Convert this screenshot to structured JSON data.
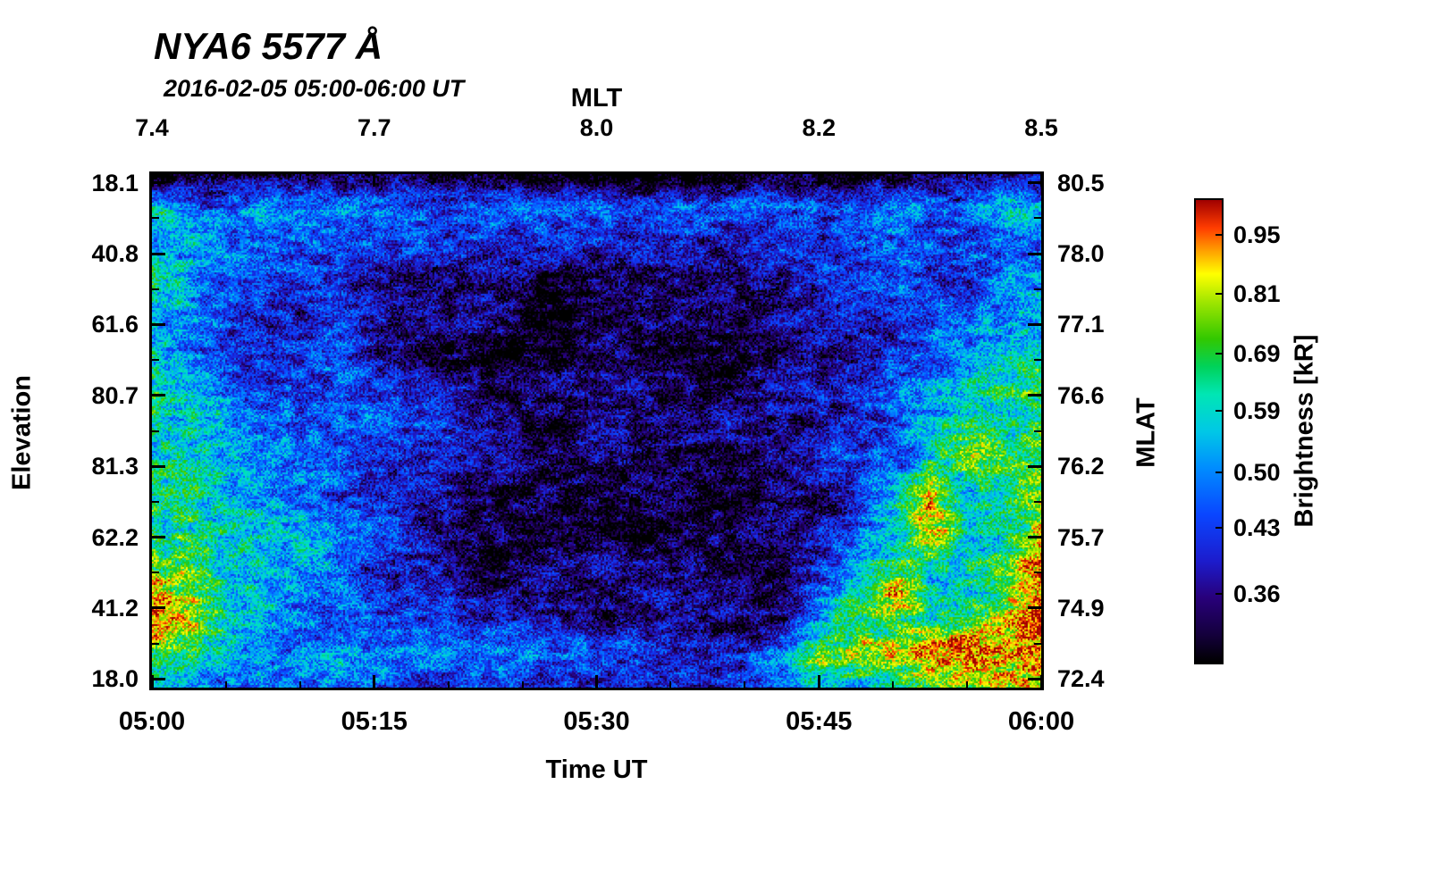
{
  "title": "NYA6 5577 Å",
  "subtitle": "2016-02-05 05:00-06:00 UT",
  "axes": {
    "top": {
      "label": "MLT",
      "ticks": [
        {
          "f": 0.0,
          "label": "7.4"
        },
        {
          "f": 0.25,
          "label": "7.7"
        },
        {
          "f": 0.5,
          "label": "8.0"
        },
        {
          "f": 0.75,
          "label": "8.2"
        },
        {
          "f": 1.0,
          "label": "8.5"
        }
      ]
    },
    "bottom": {
      "label": "Time UT",
      "ticks": [
        {
          "f": 0.0,
          "label": "05:00"
        },
        {
          "f": 0.25,
          "label": "05:15"
        },
        {
          "f": 0.5,
          "label": "05:30"
        },
        {
          "f": 0.75,
          "label": "05:45"
        },
        {
          "f": 1.0,
          "label": "06:00"
        }
      ]
    },
    "left": {
      "label": "Elevation",
      "ticks": [
        {
          "f": 0.017,
          "label": "18.1"
        },
        {
          "f": 0.155,
          "label": "40.8"
        },
        {
          "f": 0.293,
          "label": "61.6"
        },
        {
          "f": 0.431,
          "label": "80.7"
        },
        {
          "f": 0.569,
          "label": "81.3"
        },
        {
          "f": 0.707,
          "label": "62.2"
        },
        {
          "f": 0.845,
          "label": "41.2"
        },
        {
          "f": 0.983,
          "label": "18.0"
        }
      ]
    },
    "right": {
      "label": "MLAT",
      "ticks": [
        {
          "f": 0.017,
          "label": "80.5"
        },
        {
          "f": 0.155,
          "label": "78.0"
        },
        {
          "f": 0.293,
          "label": "77.1"
        },
        {
          "f": 0.431,
          "label": "76.6"
        },
        {
          "f": 0.569,
          "label": "76.2"
        },
        {
          "f": 0.707,
          "label": "75.7"
        },
        {
          "f": 0.845,
          "label": "74.9"
        },
        {
          "f": 0.983,
          "label": "72.4"
        }
      ]
    }
  },
  "colorbar": {
    "label": "Brightness [kR]",
    "tick_labels": [
      "0.95",
      "0.81",
      "0.69",
      "0.59",
      "0.50",
      "0.43",
      "0.36"
    ],
    "tick_values": [
      0.95,
      0.81,
      0.69,
      0.59,
      0.5,
      0.43,
      0.36
    ],
    "scale": "log",
    "range": [
      0.3,
      1.05
    ],
    "stops": [
      [
        0.0,
        "#000000"
      ],
      [
        0.06,
        "#14003c"
      ],
      [
        0.14,
        "#28007a"
      ],
      [
        0.22,
        "#1c1ccd"
      ],
      [
        0.32,
        "#0a46ff"
      ],
      [
        0.42,
        "#008cff"
      ],
      [
        0.5,
        "#00c8e6"
      ],
      [
        0.58,
        "#00e6b4"
      ],
      [
        0.64,
        "#00d25a"
      ],
      [
        0.7,
        "#32c800"
      ],
      [
        0.78,
        "#a0e600"
      ],
      [
        0.84,
        "#ffff00"
      ],
      [
        0.89,
        "#ffa000"
      ],
      [
        0.94,
        "#ff3c00"
      ],
      [
        1.0,
        "#a00000"
      ]
    ]
  },
  "chart_data": {
    "type": "heatmap",
    "title": "NYA6 5577 Å",
    "subtitle": "2016-02-05 05:00-06:00 UT",
    "xlabel": "Time UT",
    "x_ticks": [
      "05:00",
      "05:15",
      "05:30",
      "05:45",
      "06:00"
    ],
    "top_axis": {
      "label": "MLT",
      "ticks": [
        "7.4",
        "7.7",
        "8.0",
        "8.2",
        "8.5"
      ]
    },
    "left_axis": {
      "label": "Elevation",
      "ticks": [
        18.1,
        40.8,
        61.6,
        80.7,
        81.3,
        62.2,
        41.2,
        18.0
      ]
    },
    "right_axis": {
      "label": "MLAT",
      "ticks": [
        80.5,
        78.0,
        77.1,
        76.6,
        76.2,
        75.7,
        74.9,
        72.4
      ]
    },
    "value_label": "Brightness [kR]",
    "value_range_kR": [
      0.3,
      1.05
    ],
    "grid_rows": 16,
    "grid_cols": 25,
    "brightness_grid_kR": [
      [
        0.32,
        0.32,
        0.31,
        0.31,
        0.31,
        0.31,
        0.31,
        0.31,
        0.31,
        0.31,
        0.3,
        0.3,
        0.3,
        0.3,
        0.3,
        0.3,
        0.31,
        0.31,
        0.31,
        0.31,
        0.32,
        0.32,
        0.32,
        0.33,
        0.33
      ],
      [
        0.55,
        0.52,
        0.5,
        0.48,
        0.48,
        0.47,
        0.46,
        0.45,
        0.45,
        0.44,
        0.44,
        0.43,
        0.43,
        0.43,
        0.43,
        0.43,
        0.44,
        0.44,
        0.45,
        0.46,
        0.47,
        0.48,
        0.5,
        0.52,
        0.55
      ],
      [
        0.6,
        0.55,
        0.48,
        0.45,
        0.44,
        0.43,
        0.42,
        0.41,
        0.4,
        0.39,
        0.38,
        0.38,
        0.38,
        0.38,
        0.38,
        0.39,
        0.39,
        0.4,
        0.41,
        0.42,
        0.44,
        0.45,
        0.47,
        0.5,
        0.52
      ],
      [
        0.62,
        0.55,
        0.46,
        0.43,
        0.42,
        0.42,
        0.4,
        0.38,
        0.36,
        0.35,
        0.34,
        0.33,
        0.33,
        0.34,
        0.34,
        0.35,
        0.36,
        0.37,
        0.38,
        0.4,
        0.42,
        0.44,
        0.46,
        0.48,
        0.5
      ],
      [
        0.6,
        0.52,
        0.45,
        0.42,
        0.41,
        0.44,
        0.4,
        0.37,
        0.34,
        0.33,
        0.32,
        0.32,
        0.32,
        0.32,
        0.33,
        0.33,
        0.34,
        0.35,
        0.37,
        0.39,
        0.41,
        0.43,
        0.45,
        0.48,
        0.52
      ],
      [
        0.58,
        0.5,
        0.44,
        0.42,
        0.41,
        0.46,
        0.42,
        0.38,
        0.34,
        0.33,
        0.32,
        0.32,
        0.32,
        0.32,
        0.33,
        0.33,
        0.34,
        0.35,
        0.37,
        0.39,
        0.42,
        0.45,
        0.47,
        0.52,
        0.58
      ],
      [
        0.6,
        0.52,
        0.46,
        0.44,
        0.43,
        0.48,
        0.44,
        0.4,
        0.36,
        0.34,
        0.33,
        0.33,
        0.33,
        0.33,
        0.34,
        0.34,
        0.35,
        0.36,
        0.38,
        0.4,
        0.44,
        0.48,
        0.52,
        0.58,
        0.65
      ],
      [
        0.62,
        0.55,
        0.5,
        0.46,
        0.45,
        0.46,
        0.42,
        0.4,
        0.38,
        0.36,
        0.35,
        0.34,
        0.34,
        0.34,
        0.34,
        0.35,
        0.35,
        0.36,
        0.38,
        0.41,
        0.46,
        0.52,
        0.58,
        0.62,
        0.7
      ],
      [
        0.65,
        0.58,
        0.52,
        0.48,
        0.47,
        0.44,
        0.4,
        0.38,
        0.37,
        0.36,
        0.35,
        0.35,
        0.35,
        0.34,
        0.34,
        0.34,
        0.35,
        0.36,
        0.38,
        0.42,
        0.48,
        0.6,
        0.8,
        0.65,
        0.72
      ],
      [
        0.68,
        0.62,
        0.55,
        0.52,
        0.5,
        0.46,
        0.4,
        0.38,
        0.36,
        0.35,
        0.34,
        0.34,
        0.34,
        0.33,
        0.33,
        0.33,
        0.34,
        0.35,
        0.37,
        0.42,
        0.5,
        0.75,
        0.6,
        0.65,
        0.75
      ],
      [
        0.7,
        0.65,
        0.58,
        0.55,
        0.52,
        0.48,
        0.42,
        0.38,
        0.36,
        0.35,
        0.34,
        0.34,
        0.33,
        0.33,
        0.33,
        0.33,
        0.33,
        0.34,
        0.36,
        0.44,
        0.55,
        0.95,
        0.58,
        0.62,
        0.8
      ],
      [
        0.72,
        0.68,
        0.6,
        0.56,
        0.52,
        0.46,
        0.42,
        0.39,
        0.37,
        0.36,
        0.35,
        0.35,
        0.34,
        0.34,
        0.34,
        0.34,
        0.34,
        0.35,
        0.38,
        0.48,
        0.65,
        0.7,
        0.6,
        0.65,
        0.9
      ],
      [
        0.95,
        0.8,
        0.62,
        0.55,
        0.5,
        0.45,
        0.42,
        0.4,
        0.38,
        0.37,
        0.36,
        0.36,
        0.35,
        0.35,
        0.35,
        0.35,
        0.35,
        0.36,
        0.42,
        0.52,
        0.9,
        0.6,
        0.62,
        0.7,
        1.0
      ],
      [
        1.0,
        0.85,
        0.6,
        0.52,
        0.48,
        0.5,
        0.44,
        0.42,
        0.4,
        0.4,
        0.38,
        0.38,
        0.38,
        0.37,
        0.37,
        0.36,
        0.36,
        0.38,
        0.55,
        0.7,
        0.7,
        0.65,
        0.7,
        0.8,
        1.0
      ],
      [
        0.7,
        0.62,
        0.55,
        0.5,
        0.52,
        0.55,
        0.52,
        0.5,
        0.48,
        0.46,
        0.46,
        0.45,
        0.46,
        0.45,
        0.44,
        0.42,
        0.44,
        0.5,
        0.8,
        0.85,
        0.9,
        0.92,
        0.95,
        1.0,
        1.0
      ],
      [
        0.55,
        0.5,
        0.48,
        0.46,
        0.45,
        0.44,
        0.42,
        0.42,
        0.41,
        0.41,
        0.4,
        0.4,
        0.4,
        0.4,
        0.4,
        0.4,
        0.41,
        0.42,
        0.55,
        0.6,
        0.65,
        0.7,
        0.72,
        0.8,
        0.9
      ]
    ]
  }
}
